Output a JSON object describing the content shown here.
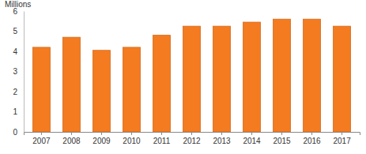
{
  "chart_data": {
    "type": "bar",
    "y_label": "Millions",
    "categories": [
      "2007",
      "2008",
      "2009",
      "2010",
      "2011",
      "2012",
      "2013",
      "2014",
      "2015",
      "2016",
      "2017"
    ],
    "values": [
      4.2,
      4.7,
      4.05,
      4.2,
      4.8,
      5.25,
      5.25,
      5.45,
      5.6,
      5.6,
      5.25
    ],
    "color": "#f47b20",
    "ylim": [
      0,
      6
    ],
    "yticks": [
      0,
      1,
      2,
      3,
      4,
      5,
      6
    ],
    "grid": false
  }
}
